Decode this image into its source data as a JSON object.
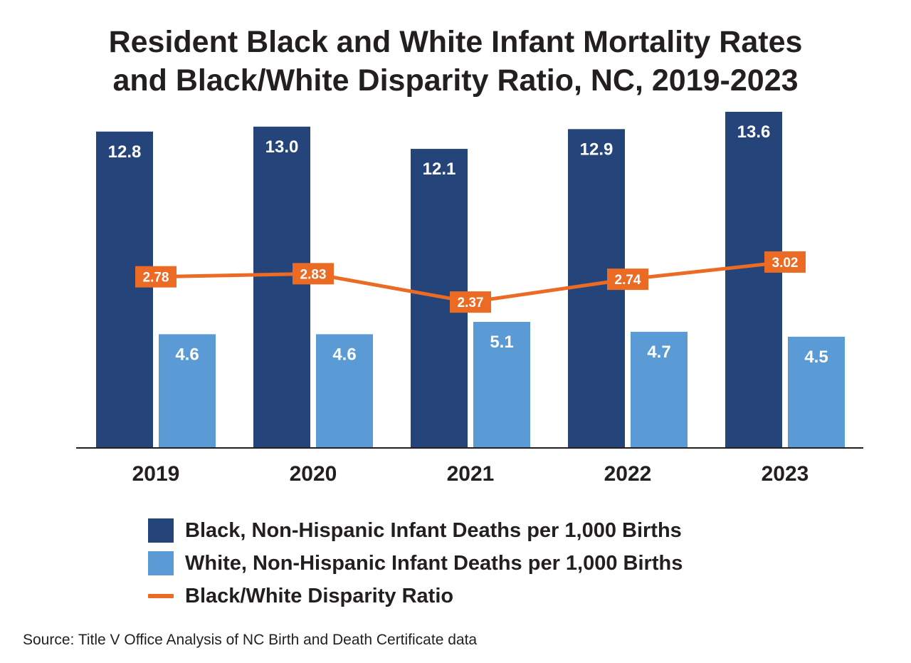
{
  "chart_data": {
    "type": "bar",
    "title_lines": [
      "Resident Black and White Infant Mortality Rates",
      "and Black/White Disparity Ratio, NC, 2019-2023"
    ],
    "categories": [
      "2019",
      "2020",
      "2021",
      "2022",
      "2023"
    ],
    "series": [
      {
        "name": "Black, Non-Hispanic Infant Deaths per 1,000 Births",
        "kind": "bar",
        "color": "#25457a",
        "values": [
          12.8,
          13.0,
          12.1,
          12.9,
          13.6
        ],
        "labels": [
          "12.8",
          "13.0",
          "12.1",
          "12.9",
          "13.6"
        ]
      },
      {
        "name": "White, Non-Hispanic Infant Deaths per 1,000 Births",
        "kind": "bar",
        "color": "#5b9bd5",
        "values": [
          4.6,
          4.6,
          5.1,
          4.7,
          4.5
        ],
        "labels": [
          "4.6",
          "4.6",
          "5.1",
          "4.7",
          "4.5"
        ]
      },
      {
        "name": "Black/White Disparity Ratio",
        "kind": "line",
        "color": "#eb6a24",
        "values": [
          2.78,
          2.83,
          2.37,
          2.74,
          3.02
        ],
        "labels": [
          "2.78",
          "2.83",
          "2.37",
          "2.74",
          "3.02"
        ]
      }
    ],
    "ylim": [
      0,
      13.6
    ],
    "line_ylim": [
      0,
      5.46
    ],
    "xlabel": "",
    "ylabel": "",
    "grid": false,
    "legend_position": "bottom"
  },
  "source": "Source: Title V Office Analysis of NC Birth and Death Certificate data"
}
